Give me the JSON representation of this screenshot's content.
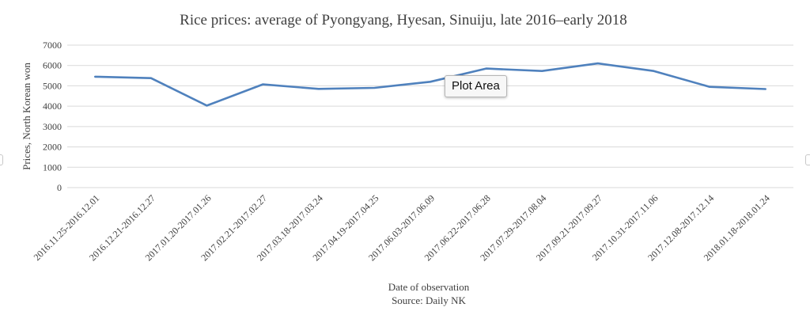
{
  "chart_data": {
    "type": "line",
    "title": "Rice prices: average of Pyongyang, Hyesan, Sinuiju, late 2016–early 2018",
    "xlabel": "Date of observation",
    "source": "Source: Daily NK",
    "ylabel": "Prices, North Korean won",
    "ylim": [
      0,
      7000
    ],
    "yticks": [
      0,
      1000,
      2000,
      3000,
      4000,
      5000,
      6000,
      7000
    ],
    "grid": true,
    "categories": [
      "2016.11.25-2016.12.01",
      "2016.12.21-2016.12.27",
      "2017.01.20-2017.01.26",
      "2017.02.21-2017.02.27",
      "2017.03.18-2017.03.24",
      "2017.04.19-2017.04.25",
      "2017.06.03-2017.06.09",
      "2017.06.22-2017.06.28",
      "2017.07.29-2017.08.04",
      "2017.09.21-2017.09.27",
      "2017.10.31-2017.11.06",
      "2017.12.08-2017.12.14",
      "2018.01.18-2018.01.24"
    ],
    "series": [
      {
        "values": [
          5450,
          5380,
          4030,
          5070,
          4850,
          4900,
          5200,
          5850,
          5730,
          6100,
          5730,
          4950,
          4840
        ],
        "color": "#4f81bd"
      }
    ]
  },
  "tooltip": {
    "label": "Plot Area"
  }
}
